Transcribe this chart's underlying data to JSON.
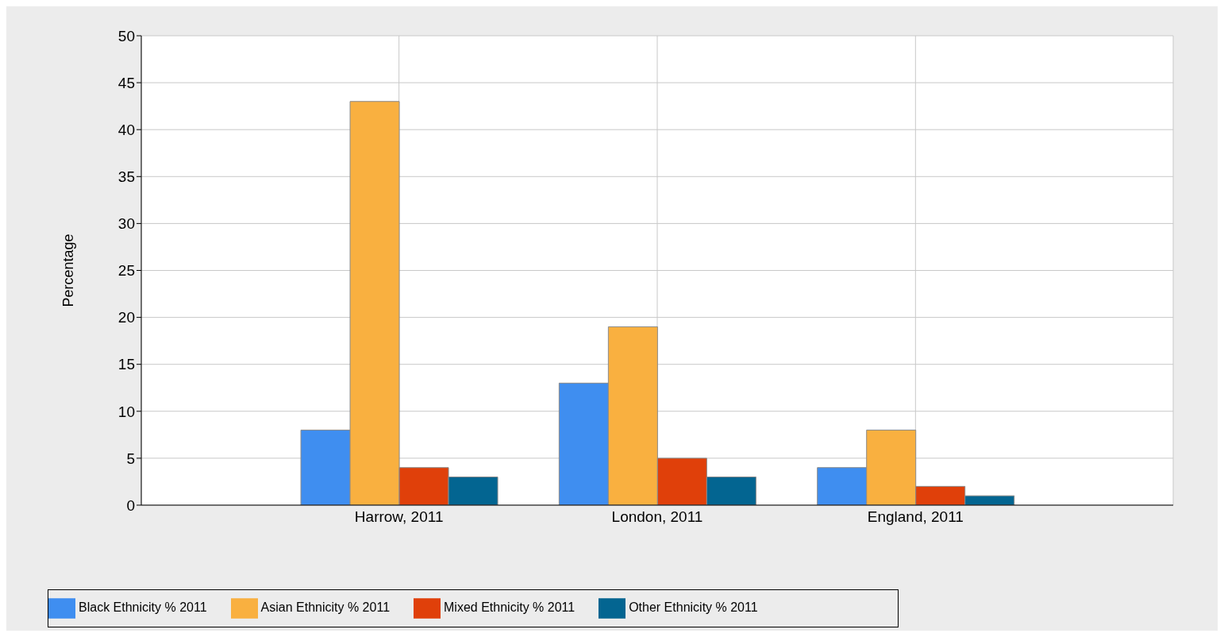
{
  "chart_data": {
    "type": "bar",
    "ylabel": "Percentage",
    "categories": [
      "Harrow, 2011",
      "London, 2011",
      "England, 2011"
    ],
    "series": [
      {
        "name": "Black Ethnicity % 2011",
        "color": "#3f8ef0",
        "values": [
          8,
          13,
          4
        ]
      },
      {
        "name": "Asian Ethnicity % 2011",
        "color": "#f9b040",
        "values": [
          43,
          19,
          8
        ]
      },
      {
        "name": "Mixed Ethnicity % 2011",
        "color": "#e0400a",
        "values": [
          4,
          5,
          2
        ]
      },
      {
        "name": "Other Ethnicity % 2011",
        "color": "#036591",
        "values": [
          3,
          3,
          1
        ]
      }
    ],
    "ylim": [
      0,
      50
    ],
    "yticks": [
      0,
      5,
      10,
      15,
      20,
      25,
      30,
      35,
      40,
      45,
      50
    ],
    "grid": true,
    "legend": "bottom left"
  }
}
